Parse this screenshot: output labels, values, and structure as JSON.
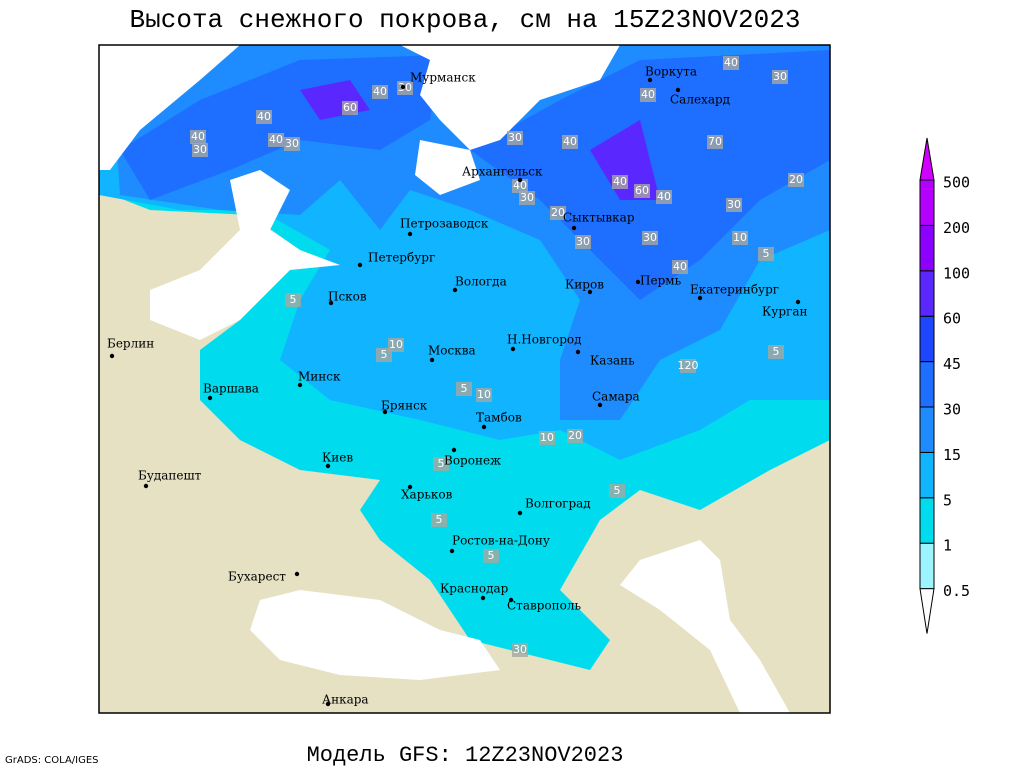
{
  "title": "Высота снежного покрова, см на 15Z23NOV2023",
  "subtitle": "Модель GFS: 12Z23NOV2023",
  "credit": "GrADS: COLA/IGES",
  "legend": {
    "levels": [
      0.5,
      1,
      5,
      15,
      30,
      45,
      60,
      100,
      200,
      500
    ],
    "colors": [
      "#ffffff",
      "#9cf4ff",
      "#00dcee",
      "#10b4ff",
      "#1e8cff",
      "#1e6eff",
      "#1e46ff",
      "#5a28ff",
      "#8c00ff",
      "#b400ff",
      "#d200ff"
    ]
  },
  "cities": [
    "Мурманск",
    "Воркута",
    "Салехард",
    "Архангельск",
    "Сыктывкар",
    "Петрозаводск",
    "Петербург",
    "Вологда",
    "Киров",
    "Пермь",
    "Екатеринбург",
    "Курган",
    "Псков",
    "Берлин",
    "Н.Новгород",
    "Москва",
    "Казань",
    "Минск",
    "Варшава",
    "Самара",
    "Брянск",
    "Тамбов",
    "Воронеж",
    "Киев",
    "Будапешт",
    "Харьков",
    "Волгоград",
    "Ростов-на-Дону",
    "Бухарест",
    "Краснодар",
    "Ставрополь",
    "Анкара"
  ],
  "contour_labels": [
    40,
    30,
    40,
    30,
    60,
    40,
    40,
    40,
    30,
    40,
    30,
    40,
    30,
    70,
    40,
    60,
    40,
    20,
    40,
    30,
    20,
    30,
    30,
    30,
    10,
    40,
    5,
    5,
    10,
    5,
    120,
    5,
    5,
    10,
    10,
    20,
    5,
    5,
    5,
    5,
    30
  ]
}
